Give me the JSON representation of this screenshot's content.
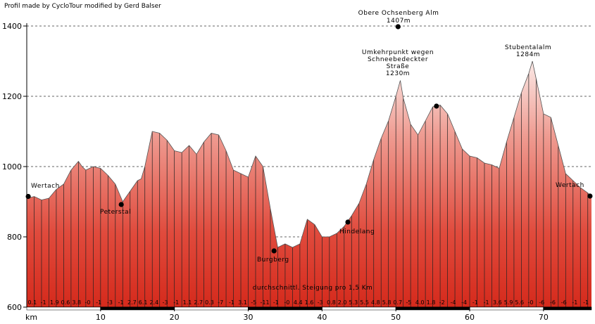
{
  "chart_data": {
    "type": "area",
    "credit": "Profil made by CycloTour modified by Gerd Balser",
    "xlabel": "km",
    "xlim": [
      0,
      76.5
    ],
    "ylim": [
      600,
      1400
    ],
    "x_ticks": [
      10,
      20,
      30,
      40,
      50,
      60,
      70
    ],
    "y_ticks": [
      600,
      800,
      1000,
      1200,
      1400
    ],
    "elevation_profile": {
      "x": [
        0,
        0.5,
        1,
        2,
        3,
        4,
        5,
        6,
        7,
        7.5,
        8,
        9,
        10,
        11,
        12,
        13,
        14,
        15,
        15.5,
        16,
        17,
        18,
        19,
        20,
        21,
        22,
        23,
        24,
        25,
        26,
        27,
        28,
        29,
        30,
        31,
        32,
        33,
        34,
        35,
        36,
        37,
        38,
        39,
        40,
        41,
        42,
        43,
        44,
        45,
        46,
        47,
        48,
        49,
        50,
        50.6,
        51,
        52,
        53,
        54,
        55,
        56,
        57,
        58,
        59,
        60,
        61,
        62,
        63,
        64,
        65,
        66,
        67,
        68,
        68.5,
        69,
        70,
        71,
        72,
        73,
        74,
        75,
        76,
        76.5
      ],
      "y": [
        910,
        912,
        915,
        905,
        910,
        935,
        950,
        990,
        1015,
        1000,
        990,
        1000,
        995,
        975,
        950,
        900,
        930,
        960,
        965,
        1000,
        1100,
        1095,
        1075,
        1045,
        1040,
        1060,
        1035,
        1070,
        1095,
        1090,
        1045,
        990,
        980,
        970,
        1030,
        1000,
        880,
        770,
        780,
        770,
        780,
        850,
        835,
        800,
        800,
        810,
        830,
        860,
        895,
        950,
        1020,
        1080,
        1130,
        1200,
        1245,
        1195,
        1120,
        1090,
        1130,
        1170,
        1175,
        1150,
        1100,
        1050,
        1030,
        1025,
        1010,
        1005,
        995,
        1070,
        1140,
        1210,
        1265,
        1300,
        1250,
        1150,
        1140,
        1060,
        980,
        960,
        940,
        925,
        915
      ]
    },
    "points": [
      {
        "name": "Wertach",
        "km": 0.2,
        "elev": 915
      },
      {
        "name": "Peterstal",
        "km": 12.8,
        "elev": 892
      },
      {
        "name": "Burgberg",
        "km": 33.5,
        "elev": 760
      },
      {
        "name": "Hindelang",
        "km": 43.5,
        "elev": 842
      },
      {
        "name": "Obere Ochsenberg Alm",
        "km": 50.3,
        "elev": 1398
      },
      {
        "name": "Umkehrpunkt",
        "km": 55.5,
        "elev": 1172
      },
      {
        "name": "Wertach end",
        "km": 76.3,
        "elev": 916
      }
    ],
    "annotations": [
      {
        "text": "Wertach",
        "km": 0.2
      },
      {
        "text": "Peterstal",
        "km": 12.8
      },
      {
        "text": "Burgberg",
        "km": 33.5
      },
      {
        "text": "Hindelang",
        "km": 43.5
      },
      {
        "text": "Wertach",
        "km": 76.3
      },
      {
        "text": "Obere Ochsenberg Alm",
        "km": 50.3
      },
      {
        "text": "1407m",
        "km": 50.3
      },
      {
        "text": "Umkehrpunkt wegen",
        "km": 50.3
      },
      {
        "text": "Schneebedeckter",
        "km": 50.3
      },
      {
        "text": "Straße",
        "km": 50.3
      },
      {
        "text": "1230m",
        "km": 50.3
      },
      {
        "text": "Stubentalalm",
        "km": 68.2
      },
      {
        "text": "1284m",
        "km": 68.2
      }
    ],
    "gradient_caption": "durchschnittl. Steigung pro 1,5 Km",
    "gradients": [
      "0.1",
      "-1",
      "1.9",
      "0.6",
      "3.8",
      "-0",
      "-1",
      "-3",
      "-1",
      "2.7",
      "6.1",
      "2.4",
      "-3",
      "-1",
      "1.1",
      "2.7",
      "0.3",
      "-7",
      "-1",
      "3.1",
      "-5",
      "-11",
      "-1",
      "-0",
      "4.4",
      "1.6",
      "-3",
      "0.8",
      "2.0",
      "5.3",
      "5.5",
      "4.8",
      "5.8",
      "0.7",
      "-5",
      "4.0",
      "1.8",
      "-2",
      "-4",
      "-4",
      "-1",
      "-1",
      "3.6",
      "5.9",
      "5.6",
      "-0",
      "-6",
      "-6",
      "-6",
      "-1",
      "-1"
    ]
  }
}
